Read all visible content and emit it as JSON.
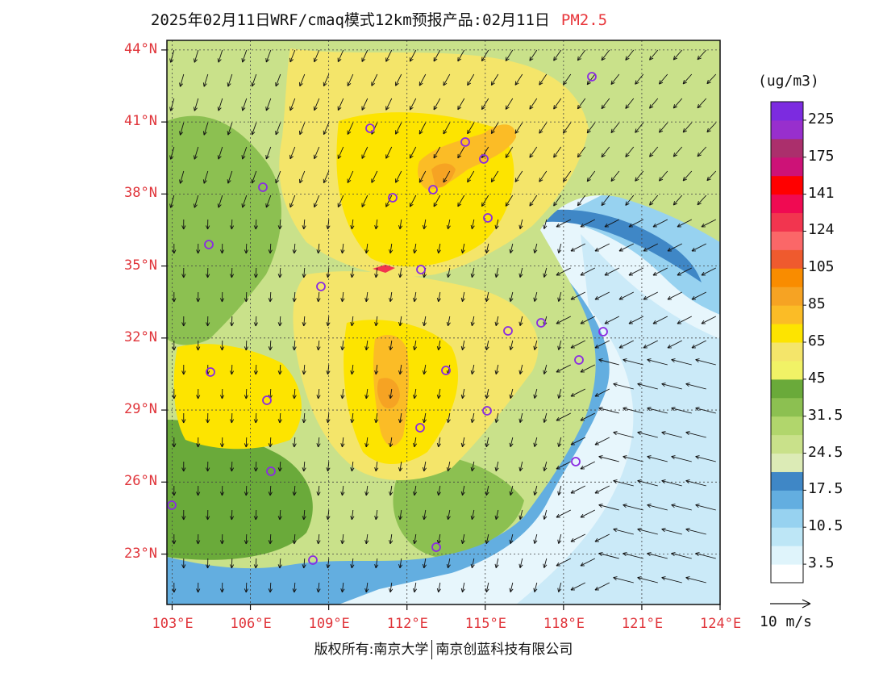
{
  "header": {
    "title": "2025年02月11日WRF/cmaq模式12km预报产品:02月11日",
    "variable": "PM2.5"
  },
  "map": {
    "lat_labels": [
      "44°N",
      "41°N",
      "38°N",
      "35°N",
      "32°N",
      "29°N",
      "26°N",
      "23°N"
    ],
    "lon_labels": [
      "103°E",
      "106°E",
      "109°E",
      "112°E",
      "115°E",
      "118°E",
      "121°E",
      "124°E"
    ],
    "extent": {
      "lon": [
        102.8,
        124.0
      ],
      "lat": [
        20.9,
        44.4
      ]
    }
  },
  "colorbar": {
    "units": "(ug/m3)",
    "colors": [
      "#ffffff",
      "#dff4fb",
      "#bde6f6",
      "#97d2f0",
      "#63aee0",
      "#3f87c6",
      "#dcebb6",
      "#c9e18a",
      "#b1d66c",
      "#8cc051",
      "#6aaa3a",
      "#f1f266",
      "#f4e56a",
      "#fde400",
      "#fbbc26",
      "#f6a323",
      "#f98c00",
      "#ef5a2e",
      "#fb6768",
      "#f2354f",
      "#f00a52",
      "#ff0000",
      "#cd1277",
      "#ab2f6c",
      "#982fcd",
      "#7c2be0"
    ],
    "labels": [
      "3.5",
      "10.5",
      "17.5",
      "24.5",
      "31.5",
      "45",
      "65",
      "85",
      "105",
      "124",
      "141",
      "175",
      "225"
    ]
  },
  "wind": {
    "reference_label": "10 m/s"
  },
  "footer": {
    "left": "版权所有:南京大学",
    "right": "南京创蓝科技有限公司"
  }
}
